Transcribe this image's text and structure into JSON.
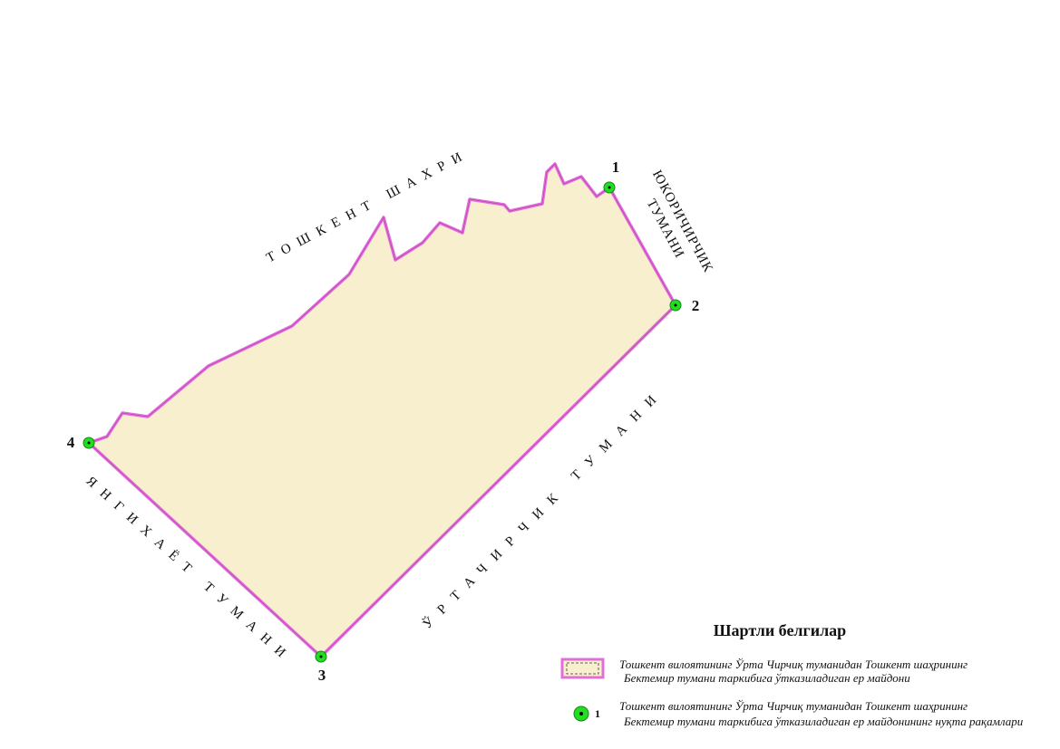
{
  "regions": {
    "north": "ТОШКЕНТ ШАХРИ",
    "northeast": [
      "ЮКОРИЧИРЧИК",
      "ТУМАНИ"
    ],
    "southeast": "ЎРТАЧИРЧИК ТУМАНИ",
    "southwest": "ЯНГИХАЁТ ТУМАНИ"
  },
  "points": [
    "1",
    "2",
    "3",
    "4"
  ],
  "legend": {
    "title": "Шартли белгилар",
    "items": [
      {
        "lines": [
          "Тошкент вилоятининг Ўрта Чирчиқ туманидан Тошкент шаҳрининг",
          "Бектемир тумани таркибига ўтказиладиган ер майдони"
        ]
      },
      {
        "symbol": "1",
        "lines": [
          "Тошкент вилоятининг Ўрта Чирчиқ туманидан Тошкент шаҳрининг",
          "Бектемир тумани таркибига ўтказиладиган ер майдонининг нуқта рақамлари"
        ]
      }
    ]
  }
}
